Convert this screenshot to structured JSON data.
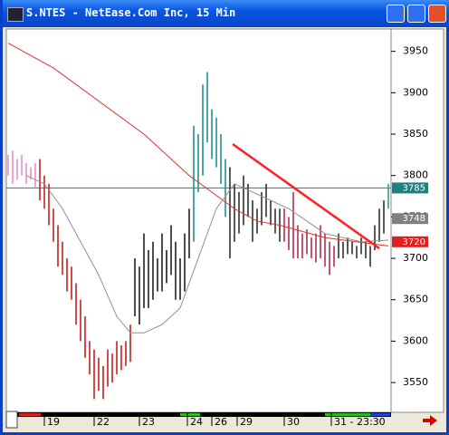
{
  "chart_data": {
    "type": "hlc",
    "title": "S.NTES - NetEase.Com Inc, 15 Min",
    "xlim": [
      -0.4,
      84.6
    ],
    "ylim": [
      3514,
      3977
    ],
    "yticks": [
      3550,
      3600,
      3650,
      3700,
      3750,
      3800,
      3850,
      3900,
      3950
    ],
    "xticks": [
      {
        "value": 8,
        "label": "19"
      },
      {
        "value": 19,
        "label": "22"
      },
      {
        "value": 29,
        "label": "23"
      },
      {
        "value": 39.6,
        "label": "24"
      },
      {
        "value": 45,
        "label": "26"
      },
      {
        "value": 50.6,
        "label": "29"
      },
      {
        "value": 61,
        "label": "30"
      },
      {
        "value": 71.4,
        "label": "31 - 23:30"
      }
    ],
    "series": [
      {
        "color": "#e890c8",
        "x": 0,
        "high": [
          3825,
          3830,
          3820,
          3825,
          3815,
          3810,
          3815
        ],
        "low": [
          3800,
          3790,
          3795,
          3800,
          3790,
          3795,
          3785
        ]
      },
      {
        "color": "#c82020",
        "x": 7,
        "high": [
          3820,
          3800,
          3790,
          3760,
          3740,
          3720,
          3700,
          3690,
          3670,
          3650,
          3630,
          3600,
          3590,
          3580,
          3570,
          3590,
          3585,
          3600,
          3595,
          3600,
          3620
        ],
        "low": [
          3770,
          3760,
          3740,
          3720,
          3690,
          3680,
          3660,
          3650,
          3620,
          3600,
          3580,
          3560,
          3530,
          3540,
          3530,
          3545,
          3550,
          3560,
          3565,
          3570,
          3575
        ]
      },
      {
        "color": "#202020",
        "x": 28,
        "high": [
          3700,
          3690,
          3730,
          3710,
          3720,
          3700,
          3730,
          3710,
          3740,
          3720,
          3700,
          3730,
          3760
        ],
        "low": [
          3630,
          3620,
          3640,
          3640,
          3650,
          3660,
          3660,
          3670,
          3680,
          3650,
          3650,
          3660,
          3700
        ]
      },
      {
        "color": "#209090",
        "x": 41,
        "high": [
          3860,
          3850,
          3910,
          3925,
          3880,
          3870,
          3850,
          3820
        ],
        "low": [
          3720,
          3780,
          3800,
          3840,
          3820,
          3810,
          3790,
          3750
        ]
      },
      {
        "color": "#303030",
        "x": 49,
        "high": [
          3810,
          3790,
          3780,
          3800,
          3790,
          3770,
          3760,
          3780,
          3790,
          3770,
          3760,
          3760
        ],
        "low": [
          3700,
          3720,
          3730,
          3740,
          3750,
          3720,
          3730,
          3740,
          3750,
          3740,
          3730,
          3720
        ]
      },
      {
        "color": "#b03050",
        "x": 61,
        "high": [
          3760,
          3750,
          3780,
          3740,
          3730,
          3735,
          3725,
          3730,
          3740,
          3730,
          3720,
          3715
        ],
        "low": [
          3720,
          3710,
          3700,
          3700,
          3700,
          3705,
          3700,
          3695,
          3700,
          3690,
          3680,
          3690
        ]
      },
      {
        "color": "#303030",
        "x": 73,
        "high": [
          3730,
          3720,
          3725,
          3720,
          3715,
          3725,
          3720,
          3715,
          3740,
          3760,
          3770
        ],
        "low": [
          3700,
          3700,
          3705,
          3705,
          3700,
          3705,
          3700,
          3690,
          3710,
          3720,
          3730
        ]
      },
      {
        "color": "#30a090",
        "x": 84,
        "high": [
          3790
        ],
        "low": [
          3760
        ]
      }
    ],
    "averages": [
      {
        "color": "#e03030",
        "x": [
          0,
          10,
          20,
          30,
          40,
          45,
          50,
          55,
          60,
          70,
          84
        ],
        "values": [
          3960,
          3930,
          3890,
          3850,
          3800,
          3780,
          3760,
          3745,
          3740,
          3725,
          3715
        ]
      },
      {
        "color": "#909090",
        "x": [
          4,
          8,
          12,
          16,
          20,
          24,
          27,
          30,
          34,
          38,
          42,
          46,
          50,
          54,
          58,
          62,
          66,
          70,
          74,
          78,
          84
        ],
        "values": [
          3800,
          3790,
          3760,
          3720,
          3680,
          3630,
          3610,
          3610,
          3620,
          3640,
          3700,
          3760,
          3790,
          3780,
          3770,
          3760,
          3745,
          3730,
          3725,
          3720,
          3722
        ]
      }
    ],
    "trendline": {
      "color": "#ff2020",
      "x": [
        49.6,
        82
      ],
      "values": [
        3838,
        3712
      ]
    },
    "last_price_line": {
      "value": 3785,
      "color": "#208080"
    },
    "price_labels": [
      {
        "value": 3785,
        "color": "#208080"
      },
      {
        "value": 3748,
        "color": "#808080"
      },
      {
        "value": 3720,
        "color": "#e02020"
      }
    ]
  }
}
